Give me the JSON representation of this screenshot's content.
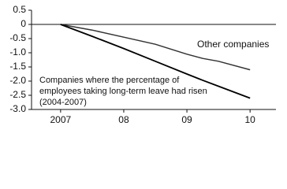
{
  "chart_data": {
    "type": "line",
    "x": [
      2007,
      2007.5,
      2008,
      2008.5,
      2009,
      2009.25,
      2009.5,
      2010
    ],
    "series": [
      {
        "name": "Other companies",
        "color": "#333333",
        "values": [
          0,
          -0.2,
          -0.45,
          -0.7,
          -1.05,
          -1.2,
          -1.3,
          -1.6
        ]
      },
      {
        "label_lines": [
          "Companies where the percentage of",
          "employees taking long-term leave had risen",
          "(2004-2007)"
        ],
        "color": "#000000",
        "values": [
          0,
          -0.42,
          -0.85,
          -1.3,
          -1.75,
          -1.97,
          -2.18,
          -2.6
        ]
      }
    ],
    "xlim": [
      2006.54,
      2010.41
    ],
    "xticks": [
      2007,
      {
        "value": 2008,
        "label": "08"
      },
      {
        "value": 2009,
        "label": "09"
      },
      {
        "value": 2010,
        "label": "10"
      }
    ],
    "ylim": [
      -3.0,
      0.5
    ],
    "yticks": [
      0.5,
      0,
      -0.5,
      {
        "value": -1,
        "label": "-1.0"
      },
      -1.5,
      {
        "value": -2,
        "label": "-2.0"
      },
      -2.5,
      {
        "value": -3,
        "label": "-3.0"
      }
    ],
    "zero_line": true
  }
}
